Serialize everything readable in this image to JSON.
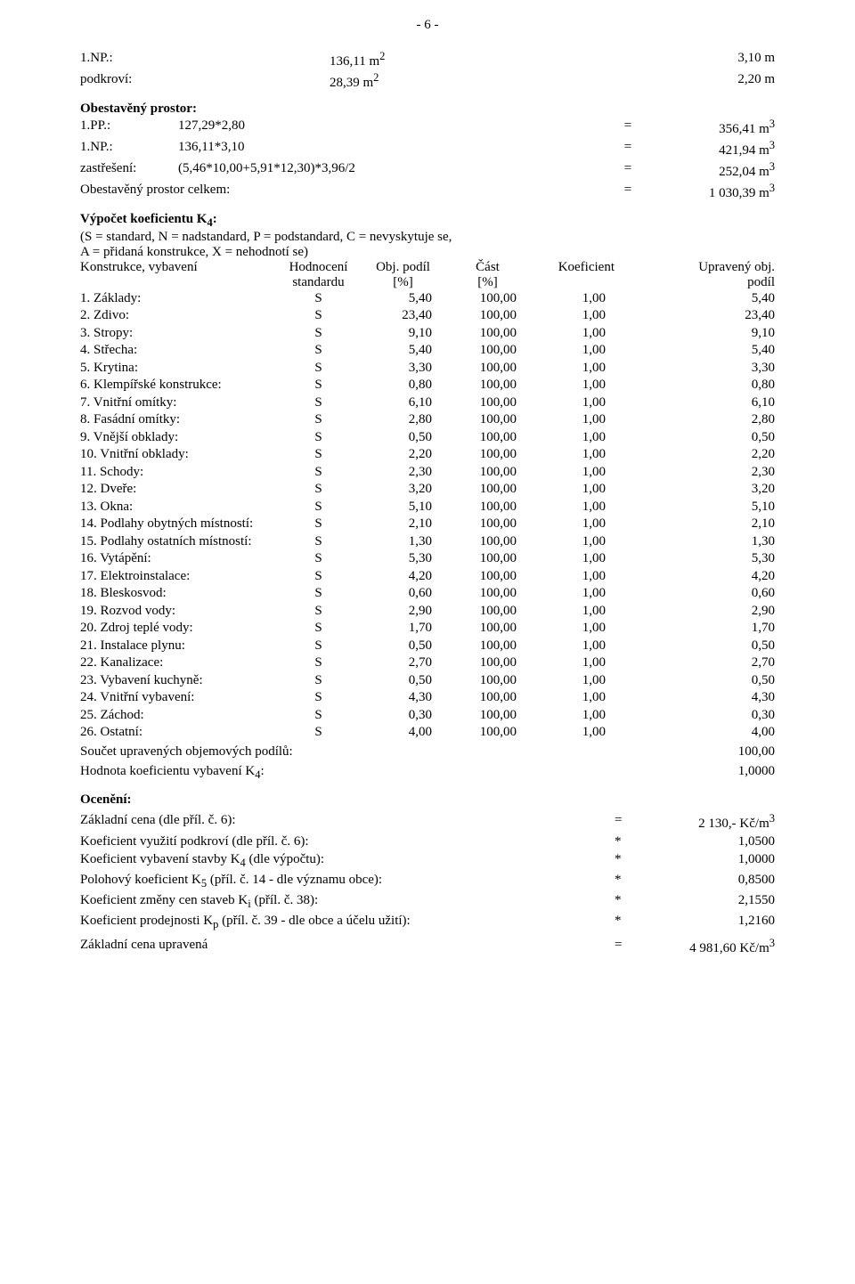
{
  "page_number_label": "- 6 -",
  "floor_areas": [
    {
      "label": "1.NP.:",
      "area": "136,11 m",
      "sup": "2",
      "height": "3,10 m"
    },
    {
      "label": "podkroví:",
      "area": "28,39 m",
      "sup": "2",
      "height": "2,20 m"
    }
  ],
  "obest_heading": "Obestavěný prostor:",
  "obest_rows": [
    {
      "label": "1.PP.:",
      "expr": "127,29*2,80",
      "eq": "=",
      "val": "356,41 m",
      "sup": "3"
    },
    {
      "label": "1.NP.:",
      "expr": "136,11*3,10",
      "eq": "=",
      "val": "421,94 m",
      "sup": "3"
    },
    {
      "label": "zastřešení:",
      "expr": "(5,46*10,00+5,91*12,30)*3,96/2",
      "eq": "=",
      "val": "252,04 m",
      "sup": "3"
    }
  ],
  "obest_total": {
    "label": "Obestavěný prostor celkem:",
    "eq": "=",
    "val": "1 030,39 m",
    "sup": "3"
  },
  "k4_heading": "Výpočet koeficientu K",
  "k4_heading_sub": "4",
  "k4_heading_suffix": ":",
  "k4_legend_line1": "(S = standard, N = nadstandard, P = podstandard, C = nevyskytuje se,",
  "k4_legend_line2": "A = přidaná konstrukce, X = nehodnotí se)",
  "table": {
    "head_row1": {
      "label": "Konstrukce, vybavení",
      "assess": "Hodnocení",
      "obj": "Obj. podíl",
      "part": "Část",
      "koef": "Koeficient",
      "upr": "Upravený obj."
    },
    "head_row2": {
      "label": "",
      "assess": "standardu",
      "obj": "[%]",
      "part": "[%]",
      "koef": "",
      "upr": "podíl"
    },
    "rows": [
      {
        "label": "1. Základy:",
        "assess": "S",
        "obj": "5,40",
        "part": "100,00",
        "koef": "1,00",
        "upr": "5,40"
      },
      {
        "label": "2. Zdivo:",
        "assess": "S",
        "obj": "23,40",
        "part": "100,00",
        "koef": "1,00",
        "upr": "23,40"
      },
      {
        "label": "3. Stropy:",
        "assess": "S",
        "obj": "9,10",
        "part": "100,00",
        "koef": "1,00",
        "upr": "9,10"
      },
      {
        "label": "4. Střecha:",
        "assess": "S",
        "obj": "5,40",
        "part": "100,00",
        "koef": "1,00",
        "upr": "5,40"
      },
      {
        "label": "5. Krytina:",
        "assess": "S",
        "obj": "3,30",
        "part": "100,00",
        "koef": "1,00",
        "upr": "3,30"
      },
      {
        "label": "6. Klempířské konstrukce:",
        "assess": "S",
        "obj": "0,80",
        "part": "100,00",
        "koef": "1,00",
        "upr": "0,80"
      },
      {
        "label": "7. Vnitřní omítky:",
        "assess": "S",
        "obj": "6,10",
        "part": "100,00",
        "koef": "1,00",
        "upr": "6,10"
      },
      {
        "label": "8. Fasádní omítky:",
        "assess": "S",
        "obj": "2,80",
        "part": "100,00",
        "koef": "1,00",
        "upr": "2,80"
      },
      {
        "label": "9. Vnější obklady:",
        "assess": "S",
        "obj": "0,50",
        "part": "100,00",
        "koef": "1,00",
        "upr": "0,50"
      },
      {
        "label": "10. Vnitřní obklady:",
        "assess": "S",
        "obj": "2,20",
        "part": "100,00",
        "koef": "1,00",
        "upr": "2,20"
      },
      {
        "label": "11. Schody:",
        "assess": "S",
        "obj": "2,30",
        "part": "100,00",
        "koef": "1,00",
        "upr": "2,30"
      },
      {
        "label": "12. Dveře:",
        "assess": "S",
        "obj": "3,20",
        "part": "100,00",
        "koef": "1,00",
        "upr": "3,20"
      },
      {
        "label": "13. Okna:",
        "assess": "S",
        "obj": "5,10",
        "part": "100,00",
        "koef": "1,00",
        "upr": "5,10"
      },
      {
        "label": "14. Podlahy obytných místností:",
        "assess": "S",
        "obj": "2,10",
        "part": "100,00",
        "koef": "1,00",
        "upr": "2,10"
      },
      {
        "label": "15. Podlahy ostatních místností:",
        "assess": "S",
        "obj": "1,30",
        "part": "100,00",
        "koef": "1,00",
        "upr": "1,30"
      },
      {
        "label": "16. Vytápění:",
        "assess": "S",
        "obj": "5,30",
        "part": "100,00",
        "koef": "1,00",
        "upr": "5,30"
      },
      {
        "label": "17. Elektroinstalace:",
        "assess": "S",
        "obj": "4,20",
        "part": "100,00",
        "koef": "1,00",
        "upr": "4,20"
      },
      {
        "label": "18. Bleskosvod:",
        "assess": "S",
        "obj": "0,60",
        "part": "100,00",
        "koef": "1,00",
        "upr": "0,60"
      },
      {
        "label": "19. Rozvod vody:",
        "assess": "S",
        "obj": "2,90",
        "part": "100,00",
        "koef": "1,00",
        "upr": "2,90"
      },
      {
        "label": "20. Zdroj teplé vody:",
        "assess": "S",
        "obj": "1,70",
        "part": "100,00",
        "koef": "1,00",
        "upr": "1,70"
      },
      {
        "label": "21. Instalace plynu:",
        "assess": "S",
        "obj": "0,50",
        "part": "100,00",
        "koef": "1,00",
        "upr": "0,50"
      },
      {
        "label": "22. Kanalizace:",
        "assess": "S",
        "obj": "2,70",
        "part": "100,00",
        "koef": "1,00",
        "upr": "2,70"
      },
      {
        "label": "23. Vybavení kuchyně:",
        "assess": "S",
        "obj": "0,50",
        "part": "100,00",
        "koef": "1,00",
        "upr": "0,50"
      },
      {
        "label": "24. Vnitřní vybavení:",
        "assess": "S",
        "obj": "4,30",
        "part": "100,00",
        "koef": "1,00",
        "upr": "4,30"
      },
      {
        "label": "25. Záchod:",
        "assess": "S",
        "obj": "0,30",
        "part": "100,00",
        "koef": "1,00",
        "upr": "0,30"
      },
      {
        "label": "26. Ostatní:",
        "assess": "S",
        "obj": "4,00",
        "part": "100,00",
        "koef": "1,00",
        "upr": "4,00"
      }
    ]
  },
  "sum_row": {
    "label": "Součet upravených objemových podílů:",
    "val": "100,00"
  },
  "k4_row": {
    "label_pre": "Hodnota koeficientu vybavení K",
    "sub": "4",
    "label_post": ":",
    "val": "1,0000"
  },
  "oc_heading": "Ocenění:",
  "oc_rows": [
    {
      "label": "Základní cena (dle příl. č. 6):",
      "op": "=",
      "val": "2 130,- Kč/m",
      "sup": "3"
    },
    {
      "label": "Koeficient využití podkroví (dle příl. č. 6):",
      "op": "*",
      "val": "1,0500"
    },
    {
      "label_pre": "Koeficient vybavení stavby K",
      "sub": "4",
      "label_post": " (dle výpočtu):",
      "op": "*",
      "val": "1,0000"
    },
    {
      "label_pre": "Polohový koeficient K",
      "sub": "5",
      "label_post": " (příl. č. 14 - dle významu obce):",
      "op": "*",
      "val": "0,8500"
    },
    {
      "label_pre": "Koeficient změny cen staveb K",
      "sub": "i",
      "label_post": " (příl. č. 38):",
      "op": "*",
      "val": "2,1550"
    },
    {
      "label_pre": "Koeficient prodejnosti K",
      "sub": "p",
      "label_post": " (příl. č. 39 - dle obce a účelu užití):",
      "op": "*",
      "val": "1,2160"
    }
  ],
  "oc_total": {
    "label": "Základní cena upravená",
    "op": "=",
    "val": "4 981,60 Kč/m",
    "sup": "3"
  }
}
